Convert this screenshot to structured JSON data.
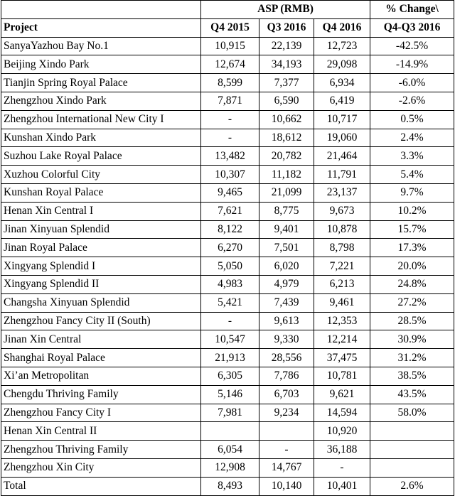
{
  "header": {
    "group": "ASP (RMB)",
    "change_line1": "% Change\\",
    "project": "Project",
    "q4_2015": "Q4 2015",
    "q3_2016": "Q3 2016",
    "q4_2016": "Q4 2016",
    "change_line2": "Q4-Q3 2016"
  },
  "rows": [
    {
      "project": "SanyaYazhou Bay No.1",
      "q4_2015": "10,915",
      "q3_2016": "22,139",
      "q4_2016": "12,723",
      "change": "-42.5%"
    },
    {
      "project": "Beijing Xindo Park",
      "q4_2015": "12,674",
      "q3_2016": "34,193",
      "q4_2016": "29,098",
      "change": "-14.9%"
    },
    {
      "project": "Tianjin Spring Royal Palace",
      "q4_2015": "8,599",
      "q3_2016": "7,377",
      "q4_2016": "6,934",
      "change": "-6.0%"
    },
    {
      "project": "Zhengzhou Xindo Park",
      "q4_2015": "7,871",
      "q3_2016": "6,590",
      "q4_2016": "6,419",
      "change": "-2.6%"
    },
    {
      "project": "Zhengzhou International New City I",
      "q4_2015": "-",
      "q3_2016": "10,662",
      "q4_2016": "10,717",
      "change": "0.5%"
    },
    {
      "project": "Kunshan Xindo Park",
      "q4_2015": "-",
      "q3_2016": "18,612",
      "q4_2016": "19,060",
      "change": "2.4%"
    },
    {
      "project": "Suzhou Lake Royal Palace",
      "q4_2015": "13,482",
      "q3_2016": "20,782",
      "q4_2016": "21,464",
      "change": "3.3%"
    },
    {
      "project": "Xuzhou Colorful City",
      "q4_2015": "10,307",
      "q3_2016": "11,182",
      "q4_2016": "11,791",
      "change": "5.4%"
    },
    {
      "project": "Kunshan Royal Palace",
      "q4_2015": "9,465",
      "q3_2016": "21,099",
      "q4_2016": "23,137",
      "change": "9.7%"
    },
    {
      "project": "Henan Xin Central I",
      "q4_2015": "7,621",
      "q3_2016": "8,775",
      "q4_2016": "9,673",
      "change": "10.2%"
    },
    {
      "project": "Jinan Xinyuan Splendid",
      "q4_2015": "8,122",
      "q3_2016": "9,401",
      "q4_2016": "10,878",
      "change": "15.7%"
    },
    {
      "project": "Jinan Royal Palace",
      "q4_2015": "6,270",
      "q3_2016": "7,501",
      "q4_2016": "8,798",
      "change": "17.3%"
    },
    {
      "project": "Xingyang Splendid I",
      "q4_2015": "5,050",
      "q3_2016": "6,020",
      "q4_2016": "7,221",
      "change": "20.0%"
    },
    {
      "project": "Xingyang Splendid II",
      "q4_2015": "4,983",
      "q3_2016": "4,979",
      "q4_2016": "6,213",
      "change": "24.8%"
    },
    {
      "project": "Changsha Xinyuan Splendid",
      "q4_2015": "5,421",
      "q3_2016": "7,439",
      "q4_2016": "9,461",
      "change": "27.2%"
    },
    {
      "project": "Zhengzhou Fancy City II (South)",
      "q4_2015": "-",
      "q3_2016": "9,613",
      "q4_2016": "12,353",
      "change": "28.5%"
    },
    {
      "project": "Jinan Xin Central",
      "q4_2015": "10,547",
      "q3_2016": "9,330",
      "q4_2016": "12,214",
      "change": "30.9%"
    },
    {
      "project": "Shanghai Royal Palace",
      "q4_2015": "21,913",
      "q3_2016": "28,556",
      "q4_2016": "37,475",
      "change": "31.2%"
    },
    {
      "project": "Xi’an Metropolitan",
      "q4_2015": "6,305",
      "q3_2016": "7,786",
      "q4_2016": "10,781",
      "change": "38.5%"
    },
    {
      "project": "Chengdu Thriving Family",
      "q4_2015": "5,146",
      "q3_2016": "6,703",
      "q4_2016": "9,621",
      "change": "43.5%"
    },
    {
      "project": "Zhengzhou Fancy City I",
      "q4_2015": "7,981",
      "q3_2016": "9,234",
      "q4_2016": "14,594",
      "change": "58.0%"
    },
    {
      "project": "Henan Xin Central II",
      "q4_2015": "",
      "q3_2016": "",
      "q4_2016": "10,920",
      "change": ""
    },
    {
      "project": "Zhengzhou Thriving Family",
      "q4_2015": "6,054",
      "q3_2016": "-",
      "q4_2016": "36,188",
      "change": ""
    },
    {
      "project": "Zhengzhou Xin City",
      "q4_2015": "12,908",
      "q3_2016": "14,767",
      "q4_2016": "-",
      "change": ""
    },
    {
      "project": "Total",
      "q4_2015": "8,493",
      "q3_2016": "10,140",
      "q4_2016": "10,401",
      "change": "2.6%"
    }
  ]
}
